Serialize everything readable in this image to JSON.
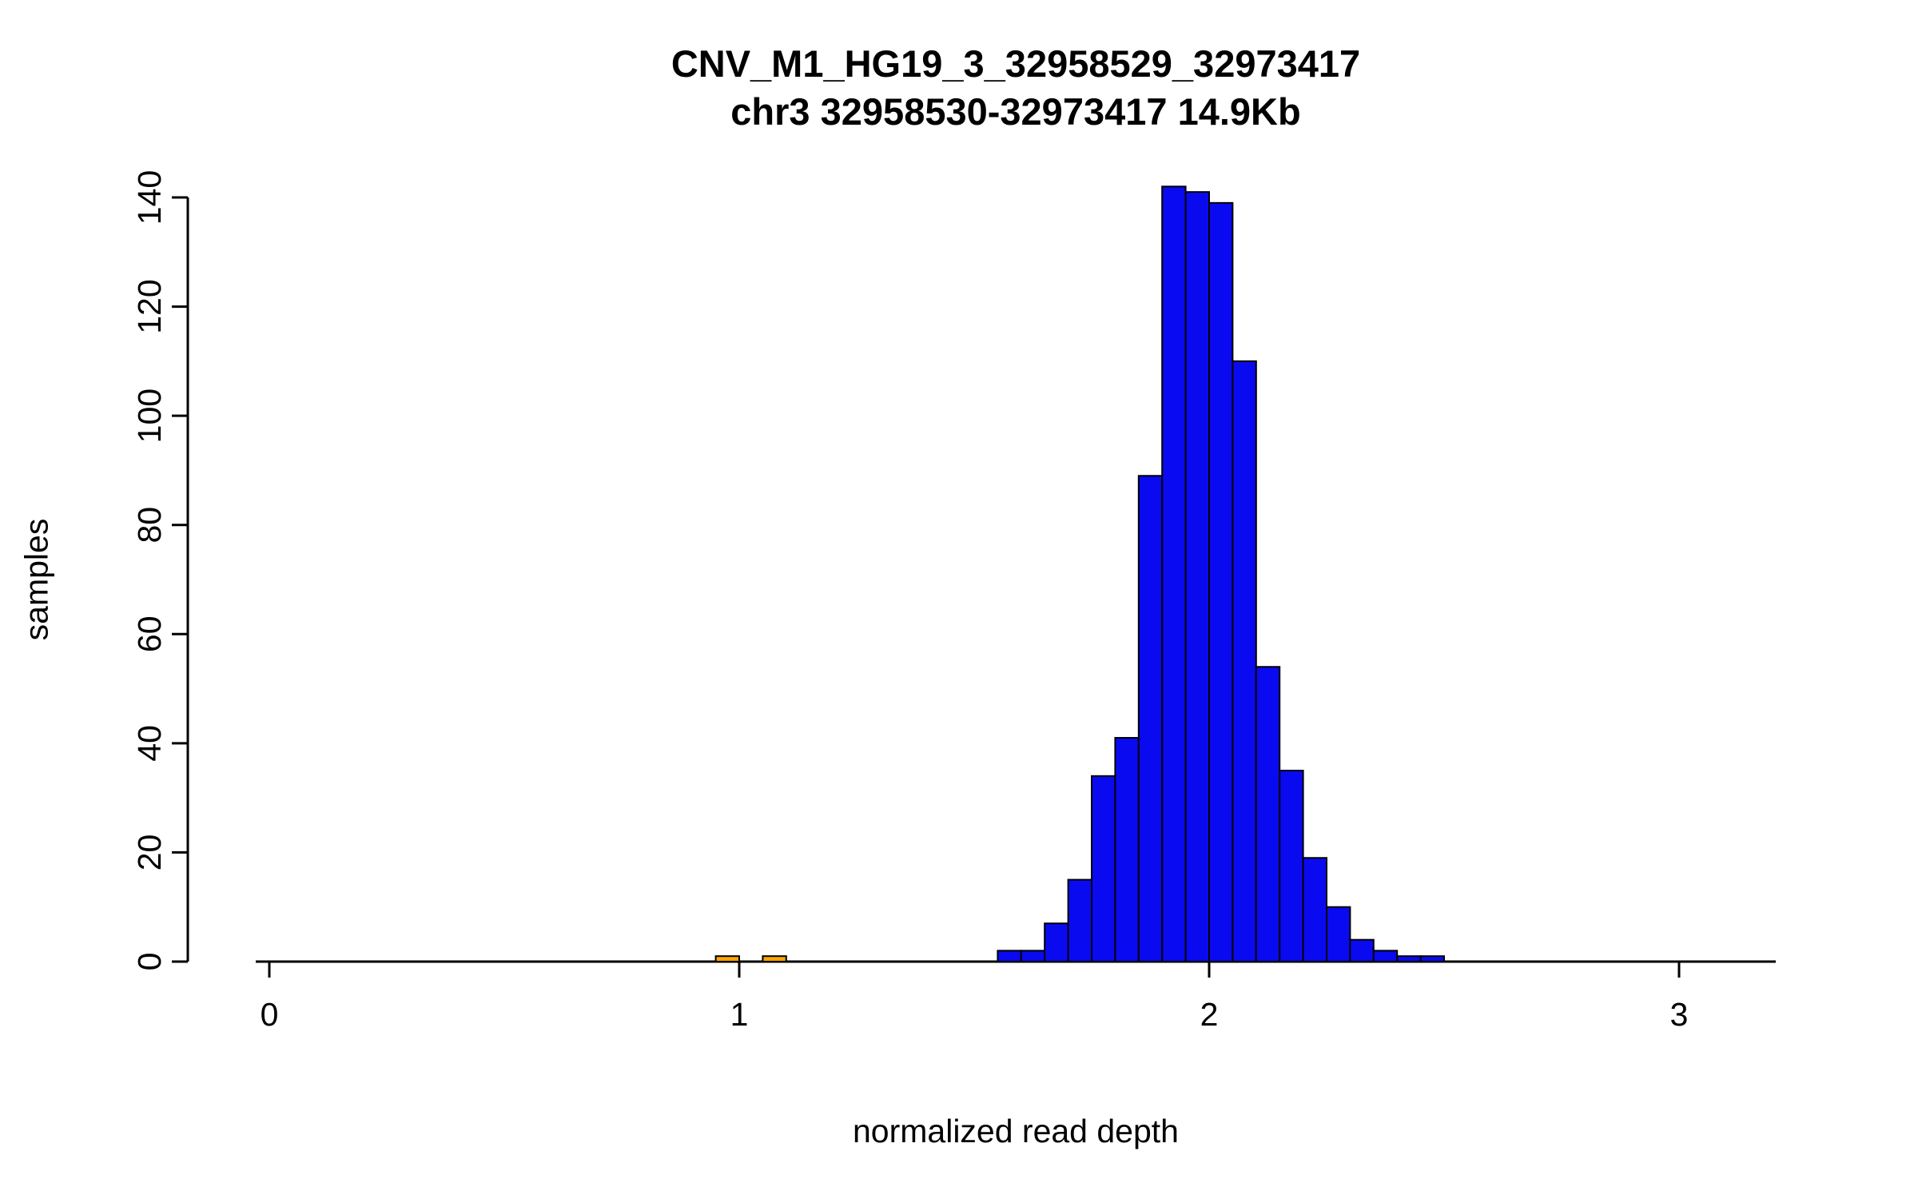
{
  "chart_data": {
    "type": "bar",
    "subtype": "histogram",
    "title": "CNV_M1_HG19_3_32958529_32973417",
    "subtitle": "chr3 32958530-32973417 14.9Kb",
    "xlabel": "normalized read depth",
    "ylabel": "samples",
    "x_ticks": [
      0,
      1,
      2,
      3
    ],
    "y_ticks": [
      0,
      20,
      40,
      60,
      80,
      100,
      120,
      140
    ],
    "xlim": [
      -0.03,
      3.2
    ],
    "ylim": [
      0,
      145
    ],
    "bin_width": 0.05,
    "grid": false,
    "legend": "none",
    "colors": {
      "main": "#0a0af0",
      "outlier": "#ffa500",
      "stroke": "#000000",
      "axis": "#000000"
    },
    "bins": [
      {
        "x0": 0.95,
        "count": 1,
        "series": "outlier"
      },
      {
        "x0": 1.05,
        "count": 1,
        "series": "outlier"
      },
      {
        "x0": 1.55,
        "count": 2,
        "series": "main"
      },
      {
        "x0": 1.6,
        "count": 2,
        "series": "main"
      },
      {
        "x0": 1.65,
        "count": 7,
        "series": "main"
      },
      {
        "x0": 1.7,
        "count": 15,
        "series": "main"
      },
      {
        "x0": 1.75,
        "count": 34,
        "series": "main"
      },
      {
        "x0": 1.8,
        "count": 41,
        "series": "main"
      },
      {
        "x0": 1.85,
        "count": 89,
        "series": "main"
      },
      {
        "x0": 1.9,
        "count": 142,
        "series": "main"
      },
      {
        "x0": 1.95,
        "count": 141,
        "series": "main"
      },
      {
        "x0": 2.0,
        "count": 139,
        "series": "main"
      },
      {
        "x0": 2.05,
        "count": 110,
        "series": "main"
      },
      {
        "x0": 2.1,
        "count": 54,
        "series": "main"
      },
      {
        "x0": 2.15,
        "count": 35,
        "series": "main"
      },
      {
        "x0": 2.2,
        "count": 19,
        "series": "main"
      },
      {
        "x0": 2.25,
        "count": 10,
        "series": "main"
      },
      {
        "x0": 2.3,
        "count": 4,
        "series": "main"
      },
      {
        "x0": 2.35,
        "count": 2,
        "series": "main"
      },
      {
        "x0": 2.4,
        "count": 1,
        "series": "main"
      },
      {
        "x0": 2.45,
        "count": 1,
        "series": "main"
      }
    ]
  }
}
